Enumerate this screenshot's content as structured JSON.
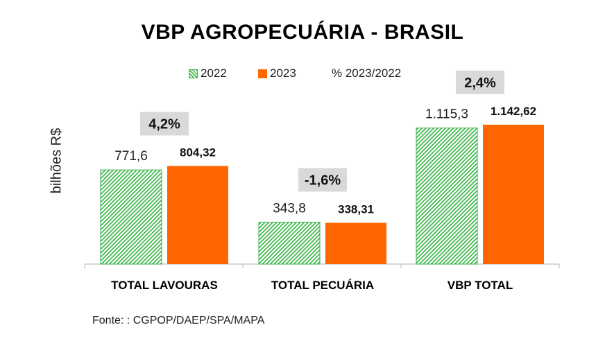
{
  "chart_data": {
    "type": "bar",
    "title": "VBP AGROPECUÁRIA - BRASIL",
    "ylabel": "bilhões R$",
    "categories": [
      "TOTAL LAVOURAS",
      "TOTAL PECUÁRIA",
      "VBP TOTAL"
    ],
    "series": [
      {
        "name": "2022",
        "values": [
          771.6,
          343.8,
          1115.3
        ],
        "labels": [
          "771,6",
          "343,8",
          "1.115,3"
        ],
        "color": "#3bb54a",
        "pattern": "hatched"
      },
      {
        "name": "2023",
        "values": [
          804.32,
          338.31,
          1142.62
        ],
        "labels": [
          "804,32",
          "338,31",
          "1.142,62"
        ],
        "color": "#ff6600"
      }
    ],
    "percent_series": {
      "name": "% 2023/2022",
      "labels": [
        "4,2%",
        "-1,6%",
        "2,4%"
      ]
    },
    "legend": [
      "2022",
      "2023",
      "% 2023/2022"
    ],
    "legend_position": "top",
    "grid": false,
    "ylim": [
      0,
      1250
    ]
  },
  "source": "Fonte: : CGPOP/DAEP/SPA/MAPA"
}
